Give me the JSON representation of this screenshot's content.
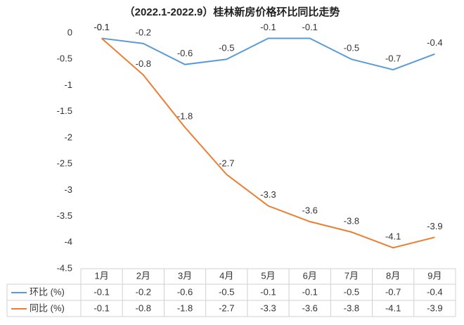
{
  "chart_data": {
    "type": "line",
    "title": "（2022.1-2022.9）桂林新房价格环比同比走势",
    "categories": [
      "1月",
      "2月",
      "3月",
      "4月",
      "5月",
      "6月",
      "7月",
      "8月",
      "9月"
    ],
    "series": [
      {
        "name": "环比 (%)",
        "color": "#5b9bd5",
        "values": [
          -0.1,
          -0.2,
          -0.6,
          -0.5,
          -0.1,
          -0.1,
          -0.5,
          -0.7,
          -0.4
        ]
      },
      {
        "name": "同比 (%)",
        "color": "#ed7d31",
        "values": [
          -0.1,
          -0.8,
          -1.8,
          -2.7,
          -3.3,
          -3.6,
          -3.8,
          -4.1,
          -3.9
        ]
      }
    ],
    "ylim": [
      -4.5,
      0
    ],
    "yticks": [
      0,
      -0.5,
      -1,
      -1.5,
      -2,
      -2.5,
      -3,
      -3.5,
      -4,
      -4.5
    ],
    "grid": false
  }
}
